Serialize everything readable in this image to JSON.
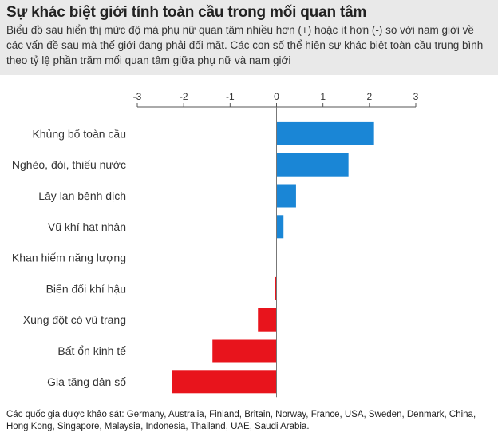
{
  "title": "Sự khác biệt giới tính toàn cầu trong mối quan tâm",
  "subtitle": "Biểu đồ sau hiển thị mức độ mà phụ nữ quan tâm nhiều hơn (+) hoặc ít hơn (-) so với nam giới về các vấn đề sau mà thế giới đang phải đối mặt. Các con số thể hiện sự khác biệt toàn cầu trung bình theo tỷ lệ phần trăm mối quan tâm giữa phụ nữ và nam giới",
  "footer": "Các quốc gia được khảo sát: Germany, Australia, Finland, Britain, Norway, France, USA, Sweden, Denmark, China, Hong Kong, Singapore, Malaysia, Indonesia, Thailand, UAE, Saudi Arabia.",
  "colors": {
    "positive": "#1a86d6",
    "negative": "#e8141c",
    "axis": "#555555",
    "header_bg": "#e9e9e9"
  },
  "chart_data": {
    "type": "bar",
    "orientation": "horizontal",
    "categories": [
      "Khủng bố toàn cầu",
      "Nghèo, đói, thiếu nước",
      "Lây lan bệnh dịch",
      "Vũ khí hạt nhân",
      "Khan hiếm năng lượng",
      "Biến đổi khí hậu",
      "Xung đột có vũ trang",
      "Bất ổn kinh tế",
      "Gia tăng dân số"
    ],
    "values": [
      2.1,
      1.55,
      0.42,
      0.15,
      0.0,
      -0.03,
      -0.4,
      -1.38,
      -2.25
    ],
    "xlim": [
      -3,
      3
    ],
    "ticks": [
      "-3",
      "-2",
      "-1",
      "0",
      "1",
      "2",
      "3"
    ],
    "tick_values": [
      -3,
      -2,
      -1,
      0,
      1,
      2,
      3
    ],
    "axis_position": "top",
    "grid": false
  }
}
